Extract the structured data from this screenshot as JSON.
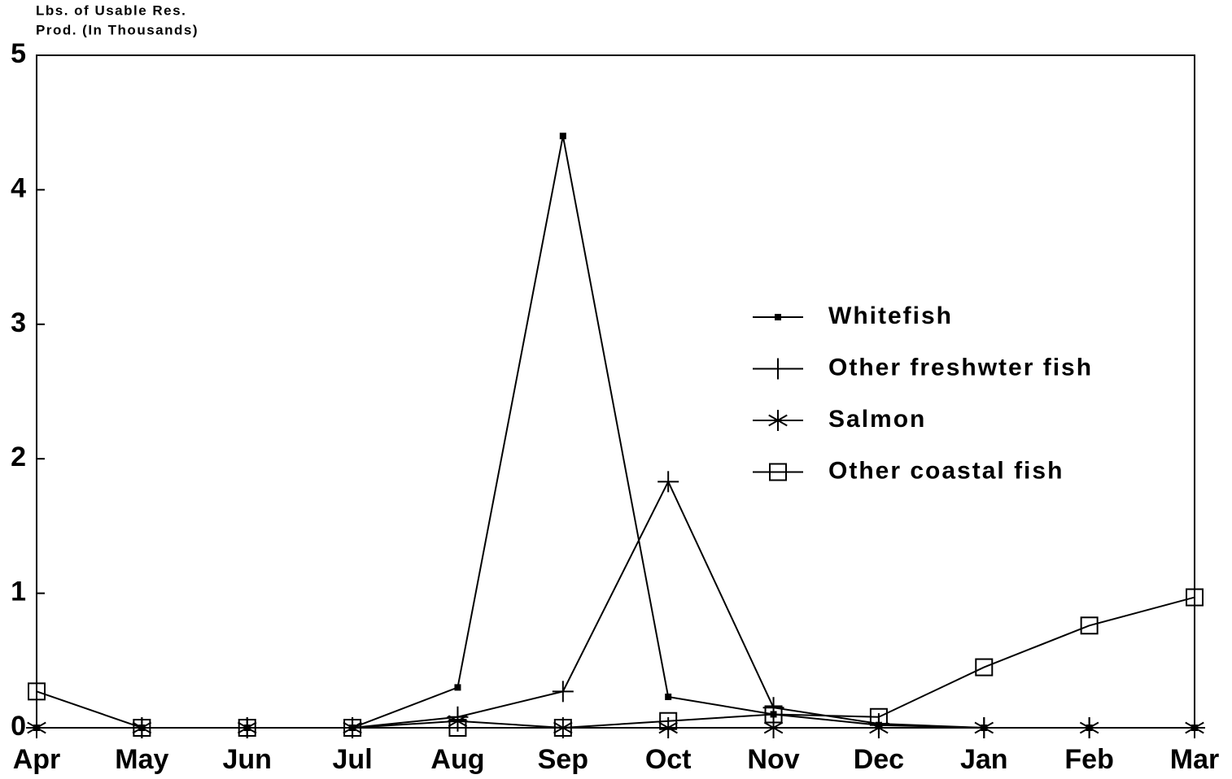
{
  "chart_data": {
    "type": "line",
    "ylabel": [
      "Lbs. of Usable Res.",
      "Prod. (In Thousands)"
    ],
    "categories": [
      "Apr",
      "May",
      "Jun",
      "Jul",
      "Aug",
      "Sep",
      "Oct",
      "Nov",
      "Dec",
      "Jan",
      "Feb",
      "Mar"
    ],
    "series": [
      {
        "name": "Whitefish",
        "color": "#000000",
        "marker": "dot",
        "values": [
          0,
          0,
          0,
          0,
          0.3,
          4.4,
          0.23,
          0.1,
          0.02,
          0,
          0,
          0
        ]
      },
      {
        "name": "Other freshwter fish",
        "color": "#000000",
        "marker": "plus",
        "values": [
          0,
          0,
          0,
          0,
          0.08,
          0.27,
          1.83,
          0.15,
          0.03,
          0,
          0,
          0
        ]
      },
      {
        "name": "Salmon",
        "color": "#000000",
        "marker": "star",
        "values": [
          0,
          0,
          0,
          0,
          0.05,
          0,
          0,
          0,
          0,
          0,
          0,
          0
        ]
      },
      {
        "name": "Other coastal fish",
        "color": "#000000",
        "marker": "square",
        "values": [
          0.27,
          0,
          0,
          0,
          0,
          0,
          0.05,
          0.1,
          0.08,
          0.45,
          0.76,
          0.97
        ]
      }
    ],
    "ylim": [
      0,
      5
    ],
    "yticks": [
      0,
      1,
      2,
      3,
      4,
      5
    ],
    "grid": false,
    "legend": "right"
  }
}
